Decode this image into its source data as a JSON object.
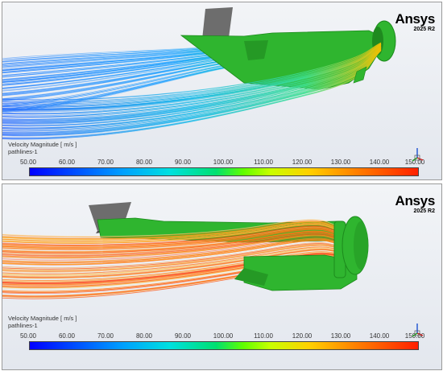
{
  "brand": {
    "name": "Ansys",
    "version": "2025 R2"
  },
  "views": [
    {
      "legend_title": "Velocity Magnitude [ m/s ]",
      "legend_subtitle": "pathlines-1",
      "ticks": [
        "50.00",
        "60.00",
        "70.00",
        "80.00",
        "90.00",
        "100.00",
        "110.00",
        "120.00",
        "130.00",
        "140.00",
        "150.00"
      ]
    },
    {
      "legend_title": "Velocity Magnitude [ m/s ]",
      "legend_subtitle": "pathlines-1",
      "ticks": [
        "50.00",
        "60.00",
        "70.00",
        "80.00",
        "90.00",
        "100.00",
        "110.00",
        "120.00",
        "130.00",
        "140.00",
        "150.00"
      ]
    }
  ],
  "colors": {
    "geometry": "#2fb52f",
    "geometry_dark": "#1f8a1f",
    "fin": "#6b6b6b",
    "low_velocity": "#0000ff",
    "high_velocity": "#ff2000"
  },
  "icons": [
    "axis-triad-icon"
  ]
}
